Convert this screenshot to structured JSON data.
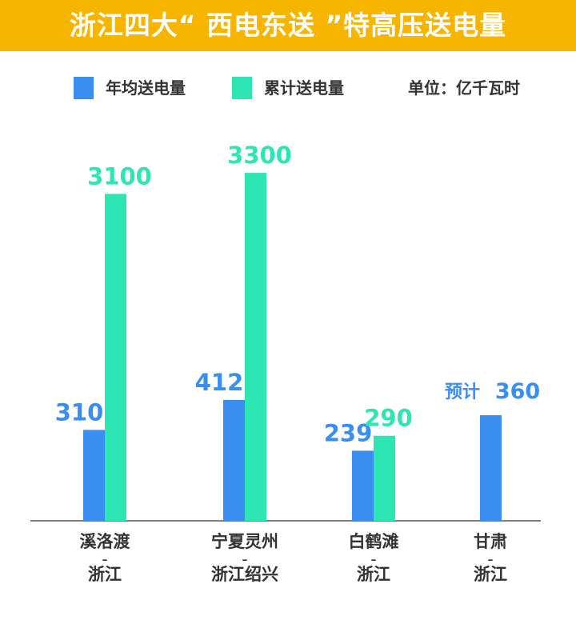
{
  "title": "浙江四大“ 西电东送 ”特高压送电量",
  "colors": {
    "title_bg": "#f7b500",
    "annual": "#3a8ef0",
    "cumulative": "#2ee6b4",
    "axis": "#555555"
  },
  "legend": {
    "annual": "年均送电量",
    "cumulative": "累计送电量"
  },
  "unit": "单位：亿千瓦时",
  "chart_data": {
    "type": "bar",
    "categories": [
      [
        "溪洛渡",
        "–",
        "浙江"
      ],
      [
        "宁夏灵州",
        "–",
        "浙江绍兴"
      ],
      [
        "白鹤滩",
        "–",
        "浙江"
      ],
      [
        "甘肃",
        "–",
        "浙江"
      ]
    ],
    "series": [
      {
        "name": "年均送电量",
        "values": [
          310,
          412,
          239,
          360
        ],
        "labels": [
          "310",
          "412",
          "239",
          "预计 360"
        ]
      },
      {
        "name": "累计送电量",
        "values": [
          3100,
          3300,
          290,
          null
        ],
        "labels": [
          "3100",
          "3300",
          "290",
          ""
        ]
      }
    ]
  }
}
